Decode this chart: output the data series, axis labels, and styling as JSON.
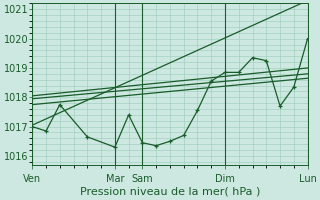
{
  "bg_color": "#cce8e0",
  "grid_color": "#99ccbb",
  "line_color": "#1a5c2a",
  "xlabel": "Pression niveau de la mer( hPa )",
  "xlabel_color": "#1a5c2a",
  "xlabel_fontsize": 8,
  "tick_color": "#1a5c2a",
  "tick_fontsize": 7,
  "ylim": [
    1015.7,
    1021.2
  ],
  "yticks": [
    1016,
    1017,
    1018,
    1019,
    1020,
    1021
  ],
  "xtick_labels": [
    "Ven",
    "Mar",
    "Sam",
    "Dim",
    "Lun"
  ],
  "xtick_positions": [
    0,
    3,
    4,
    7,
    10
  ],
  "vline_positions": [
    0,
    3,
    4,
    7,
    10
  ],
  "series1_x": [
    0,
    0.5,
    1.0,
    2.0,
    3.0,
    3.5,
    4.0,
    4.5,
    5.0,
    5.5,
    6.0,
    6.5,
    7.0,
    7.5,
    8.0,
    8.5,
    9.0,
    9.5,
    10.0
  ],
  "series1_y": [
    1017.0,
    1016.85,
    1017.75,
    1016.65,
    1016.3,
    1017.4,
    1016.45,
    1016.35,
    1016.5,
    1016.7,
    1017.55,
    1018.55,
    1018.85,
    1018.85,
    1019.35,
    1019.25,
    1017.7,
    1018.35,
    1020.0
  ],
  "series2_x": [
    0,
    10
  ],
  "series2_y": [
    1017.05,
    1021.3
  ],
  "series3_x": [
    0,
    10
  ],
  "series3_y": [
    1017.75,
    1018.65
  ],
  "series4_x": [
    0,
    10
  ],
  "series4_y": [
    1017.95,
    1018.8
  ],
  "series5_x": [
    0,
    10
  ],
  "series5_y": [
    1018.05,
    1019.0
  ],
  "xmin": 0,
  "xmax": 10
}
